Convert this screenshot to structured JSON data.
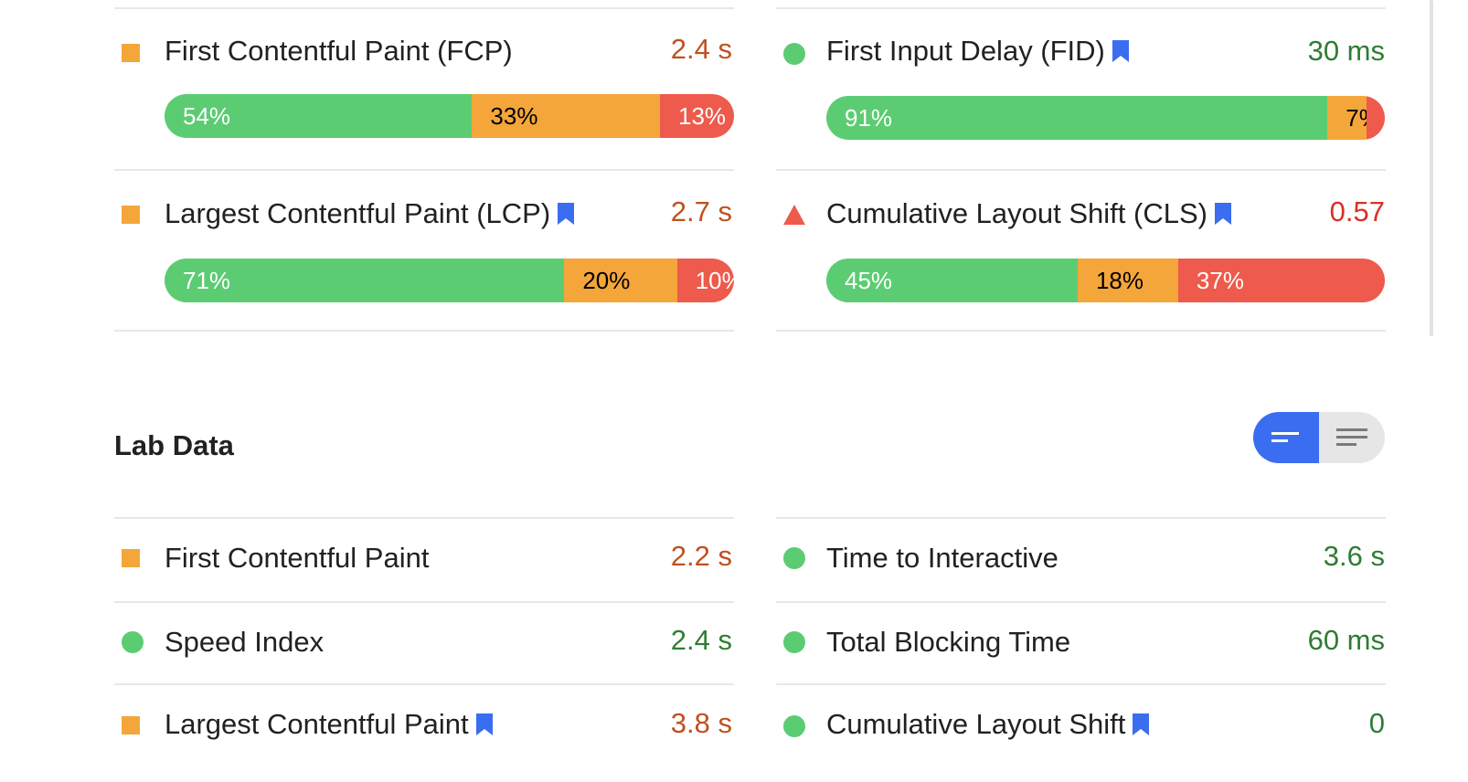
{
  "colors": {
    "good": "#5ccc73",
    "average": "#f4a63b",
    "poor": "#ee5a4b",
    "good_text": "#2e7d32",
    "average_text": "#c0501f",
    "poor_text": "#d93025",
    "bookmark": "#3a6df0"
  },
  "field_data": [
    {
      "label": "First Contentful Paint (FCP)",
      "value": "2.4 s",
      "status": "average",
      "indicator": "orange-square-icon",
      "bookmark": false,
      "distribution": {
        "good": "54%",
        "average": "33%",
        "poor": "13%"
      },
      "distribution_values": {
        "good": 54,
        "average": 33,
        "poor": 13
      }
    },
    {
      "label": "First Input Delay (FID)",
      "value": "30 ms",
      "status": "good",
      "indicator": "green-circle-icon",
      "bookmark": true,
      "distribution": {
        "good": "91%",
        "average": "7%",
        "poor": "2%"
      },
      "distribution_values": {
        "good": 91,
        "average": 7,
        "poor": 2
      }
    },
    {
      "label": "Largest Contentful Paint (LCP)",
      "value": "2.7 s",
      "status": "average",
      "indicator": "orange-square-icon",
      "bookmark": true,
      "distribution": {
        "good": "71%",
        "average": "20%",
        "poor": "10%"
      },
      "distribution_values": {
        "good": 71,
        "average": 20,
        "poor": 10
      }
    },
    {
      "label": "Cumulative Layout Shift (CLS)",
      "value": "0.57",
      "status": "poor",
      "indicator": "red-triangle-icon",
      "bookmark": true,
      "distribution": {
        "good": "45%",
        "average": "18%",
        "poor": "37%"
      },
      "distribution_values": {
        "good": 45,
        "average": 18,
        "poor": 37
      }
    }
  ],
  "lab_data": {
    "title": "Lab Data",
    "view_toggle": {
      "selected": "bar-view",
      "options": [
        "bar-view-icon",
        "list-view-icon"
      ]
    },
    "metrics": [
      {
        "label": "First Contentful Paint",
        "value": "2.2 s",
        "status": "average",
        "indicator": "orange-square-icon",
        "bookmark": false
      },
      {
        "label": "Time to Interactive",
        "value": "3.6 s",
        "status": "good",
        "indicator": "green-circle-icon",
        "bookmark": false
      },
      {
        "label": "Speed Index",
        "value": "2.4 s",
        "status": "good",
        "indicator": "green-circle-icon",
        "bookmark": false
      },
      {
        "label": "Total Blocking Time",
        "value": "60 ms",
        "status": "good",
        "indicator": "green-circle-icon",
        "bookmark": false
      },
      {
        "label": "Largest Contentful Paint",
        "value": "3.8 s",
        "status": "average",
        "indicator": "orange-square-icon",
        "bookmark": true
      },
      {
        "label": "Cumulative Layout Shift",
        "value": "0",
        "status": "good",
        "indicator": "green-circle-icon",
        "bookmark": true
      }
    ]
  }
}
